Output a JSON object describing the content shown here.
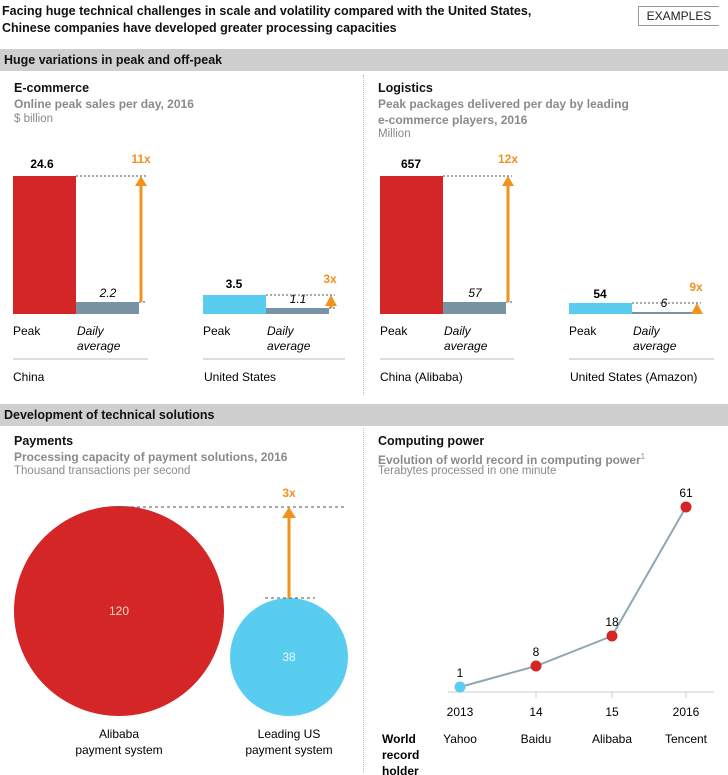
{
  "header": {
    "title_line1": "Facing huge technical challenges in scale and volatility compared with the United States,",
    "title_line2": "Chinese companies have developed greater processing capacities",
    "badge": "EXAMPLES"
  },
  "section1": {
    "title": "Huge variations in peak and off-peak"
  },
  "section2": {
    "title": "Development of technical solutions"
  },
  "colors": {
    "red": "#d42527",
    "blue": "#59cdf0",
    "gray": "#7793a4",
    "orange": "#f0921e",
    "line": "#8fa6b3"
  },
  "chart_data": [
    {
      "type": "bar",
      "title": "E-commerce",
      "subtitle": "Online peak sales per day, 2016",
      "unit": "$ billion",
      "groups": [
        {
          "name": "China",
          "peak": 24.6,
          "daily_average": 2.2,
          "peak_label": "24.6",
          "avg_label": "2.2",
          "multiple": "11x"
        },
        {
          "name": "United States",
          "peak": 3.5,
          "daily_average": 1.1,
          "peak_label": "3.5",
          "avg_label": "1.1",
          "multiple": "3x"
        }
      ],
      "categories": [
        "Peak",
        "Daily average"
      ],
      "bar_labels": {
        "peak": "Peak",
        "avg1": "Daily",
        "avg2": "average"
      }
    },
    {
      "type": "bar",
      "title": "Logistics",
      "subtitle_line1": "Peak packages delivered per day by leading",
      "subtitle_line2": "e-commerce players, 2016",
      "unit": "Million",
      "groups": [
        {
          "name": "China (Alibaba)",
          "peak": 657,
          "daily_average": 57,
          "peak_label": "657",
          "avg_label": "57",
          "multiple": "12x"
        },
        {
          "name": "United States (Amazon)",
          "peak": 54,
          "daily_average": 6,
          "peak_label": "54",
          "avg_label": "6",
          "multiple": "9x"
        }
      ],
      "categories": [
        "Peak",
        "Daily average"
      ]
    },
    {
      "type": "bubble",
      "title": "Payments",
      "subtitle": "Processing capacity of payment solutions, 2016",
      "unit": "Thousand transactions per second",
      "items": [
        {
          "label_line1": "Alibaba",
          "label_line2": "payment system",
          "value": 120,
          "value_label": "120"
        },
        {
          "label_line1": "Leading US",
          "label_line2": "payment system",
          "value": 38,
          "value_label": "38"
        }
      ],
      "multiple": "3x"
    },
    {
      "type": "line",
      "title": "Computing power",
      "subtitle": "Evolution of world record in computing power",
      "footnote_mark": "1",
      "unit": "Terabytes processed in one minute",
      "x": [
        "2013",
        "14",
        "15",
        "2016"
      ],
      "values": [
        1,
        8,
        18,
        61
      ],
      "value_labels": [
        "1",
        "8",
        "18",
        "61"
      ],
      "holders": [
        "Yahoo",
        "Baidu",
        "Alibaba",
        "Tencent"
      ],
      "holder_title_line1": "World",
      "holder_title_line2": "record",
      "holder_title_line3": "holder",
      "ylim": [
        0,
        61
      ]
    }
  ]
}
